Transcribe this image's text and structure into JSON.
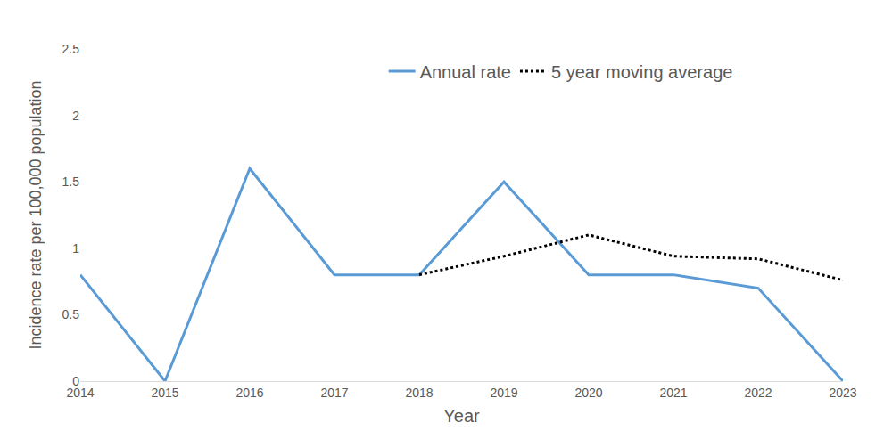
{
  "chart_data": {
    "type": "line",
    "x_label": "Year",
    "y_label": "Incidence rate per 100,000 population",
    "categories": [
      "2014",
      "2015",
      "2016",
      "2017",
      "2018",
      "2019",
      "2020",
      "2021",
      "2022",
      "2023"
    ],
    "series": [
      {
        "name": "Annual rate",
        "color": "#5b9bd5",
        "line_style": "solid",
        "values": [
          0.8,
          0,
          1.6,
          0.8,
          0.8,
          1.5,
          0.8,
          0.8,
          0.7,
          0
        ]
      },
      {
        "name": "5 year moving average",
        "color": "#000000",
        "line_style": "dotted",
        "values": [
          null,
          null,
          null,
          null,
          0.8,
          0.94,
          1.1,
          0.94,
          0.92,
          0.76
        ]
      }
    ],
    "ylim": [
      0,
      2.5
    ],
    "yticks": [
      0,
      0.5,
      1,
      1.5,
      2,
      2.5
    ],
    "grid": false,
    "legend": "top"
  }
}
